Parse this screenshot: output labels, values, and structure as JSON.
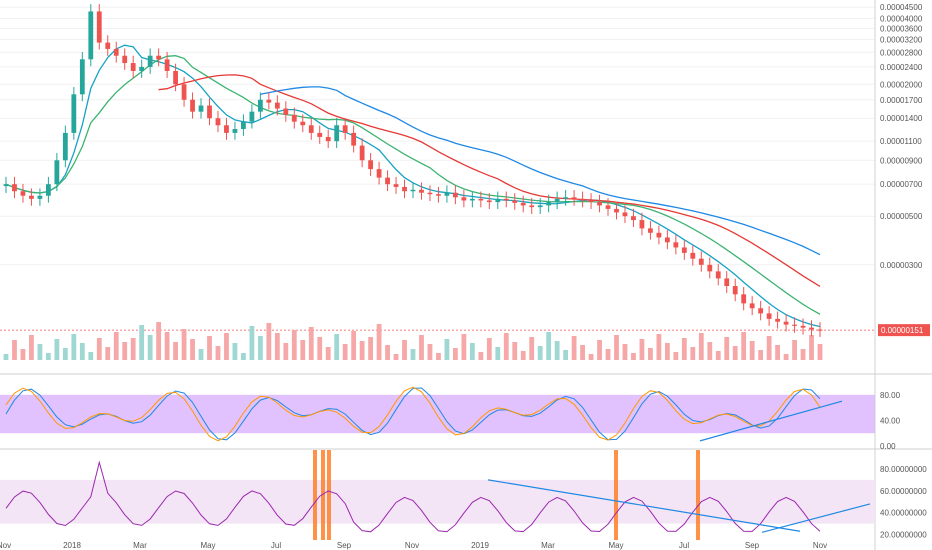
{
  "chart_data": [
    {
      "type": "candlestick",
      "panel": "price",
      "x_tick_labels": [
        "Nov",
        "2018",
        "Mar",
        "May",
        "Jul",
        "Sep",
        "Nov",
        "2019",
        "Mar",
        "May",
        "Jul",
        "Sep",
        "Nov"
      ],
      "y_tick_labels": [
        "0.00004500",
        "0.00004000",
        "0.00003600",
        "0.00003200",
        "0.00002800",
        "0.00002400",
        "0.00002000",
        "0.00001700",
        "0.00001400",
        "0.00001100",
        "0.00000900",
        "0.00000700",
        "0.00000500",
        "0.00000300"
      ],
      "y_ticks": [
        4500,
        4000,
        3600,
        3200,
        2800,
        2400,
        2000,
        1700,
        1400,
        1100,
        900,
        700,
        500,
        300
      ],
      "last_price_label": "0.00000151",
      "last_price": 151,
      "price_unit_note": "values scaled by 1e-8",
      "candles_close": [
        700,
        650,
        620,
        600,
        620,
        700,
        900,
        1200,
        1800,
        2600,
        4300,
        3100,
        2900,
        2700,
        2500,
        2300,
        2400,
        2700,
        2600,
        2300,
        2000,
        1700,
        1500,
        1600,
        1400,
        1300,
        1200,
        1250,
        1350,
        1500,
        1700,
        1650,
        1550,
        1450,
        1350,
        1300,
        1200,
        1150,
        1100,
        1300,
        1200,
        1050,
        900,
        820,
        750,
        700,
        680,
        650,
        660,
        640,
        630,
        620,
        640,
        610,
        590,
        600,
        590,
        580,
        600,
        590,
        575,
        560,
        550,
        560,
        580,
        600,
        610,
        600,
        590,
        580,
        560,
        540,
        520,
        500,
        480,
        440,
        420,
        400,
        380,
        360,
        340,
        320,
        300,
        280,
        260,
        240,
        220,
        200,
        190,
        180,
        170,
        165,
        160,
        158,
        155,
        152,
        151
      ],
      "ma_series": [
        {
          "name": "",
          "color": "#17a2c4"
        },
        {
          "name": "",
          "color": "#3cb371"
        },
        {
          "name": "",
          "color": "#e53935"
        },
        {
          "name": "",
          "color": "#1e88e5"
        }
      ],
      "colors": {
        "up": "#26a69a",
        "down": "#ef5350",
        "grid": "#eeeeee",
        "last_price_tag": "#ef5350"
      }
    },
    {
      "type": "line",
      "panel": "stochastic",
      "y_tick_labels": [
        "80.00",
        "40.00",
        "0.00"
      ],
      "y_ticks": [
        80,
        40,
        0
      ],
      "band": [
        20,
        80
      ],
      "series": [
        {
          "name": "",
          "color": "#1e88e5"
        },
        {
          "name": "",
          "color": "#ff9800"
        }
      ],
      "colors": {
        "band_fill": "#d9b3ff",
        "trend": "#1e88e5"
      }
    },
    {
      "type": "line",
      "panel": "rsi",
      "y_tick_labels": [
        "80.00000000",
        "60.00000000",
        "40.00000000",
        "20.00000000"
      ],
      "y_ticks": [
        80,
        60,
        40,
        20
      ],
      "band": [
        30,
        70
      ],
      "series": [
        {
          "name": "",
          "color": "#9c27b0"
        }
      ],
      "colors": {
        "band_fill": "#f3e5f5",
        "highlight": "#ff7f27",
        "trend": "#1e88e5"
      }
    }
  ]
}
